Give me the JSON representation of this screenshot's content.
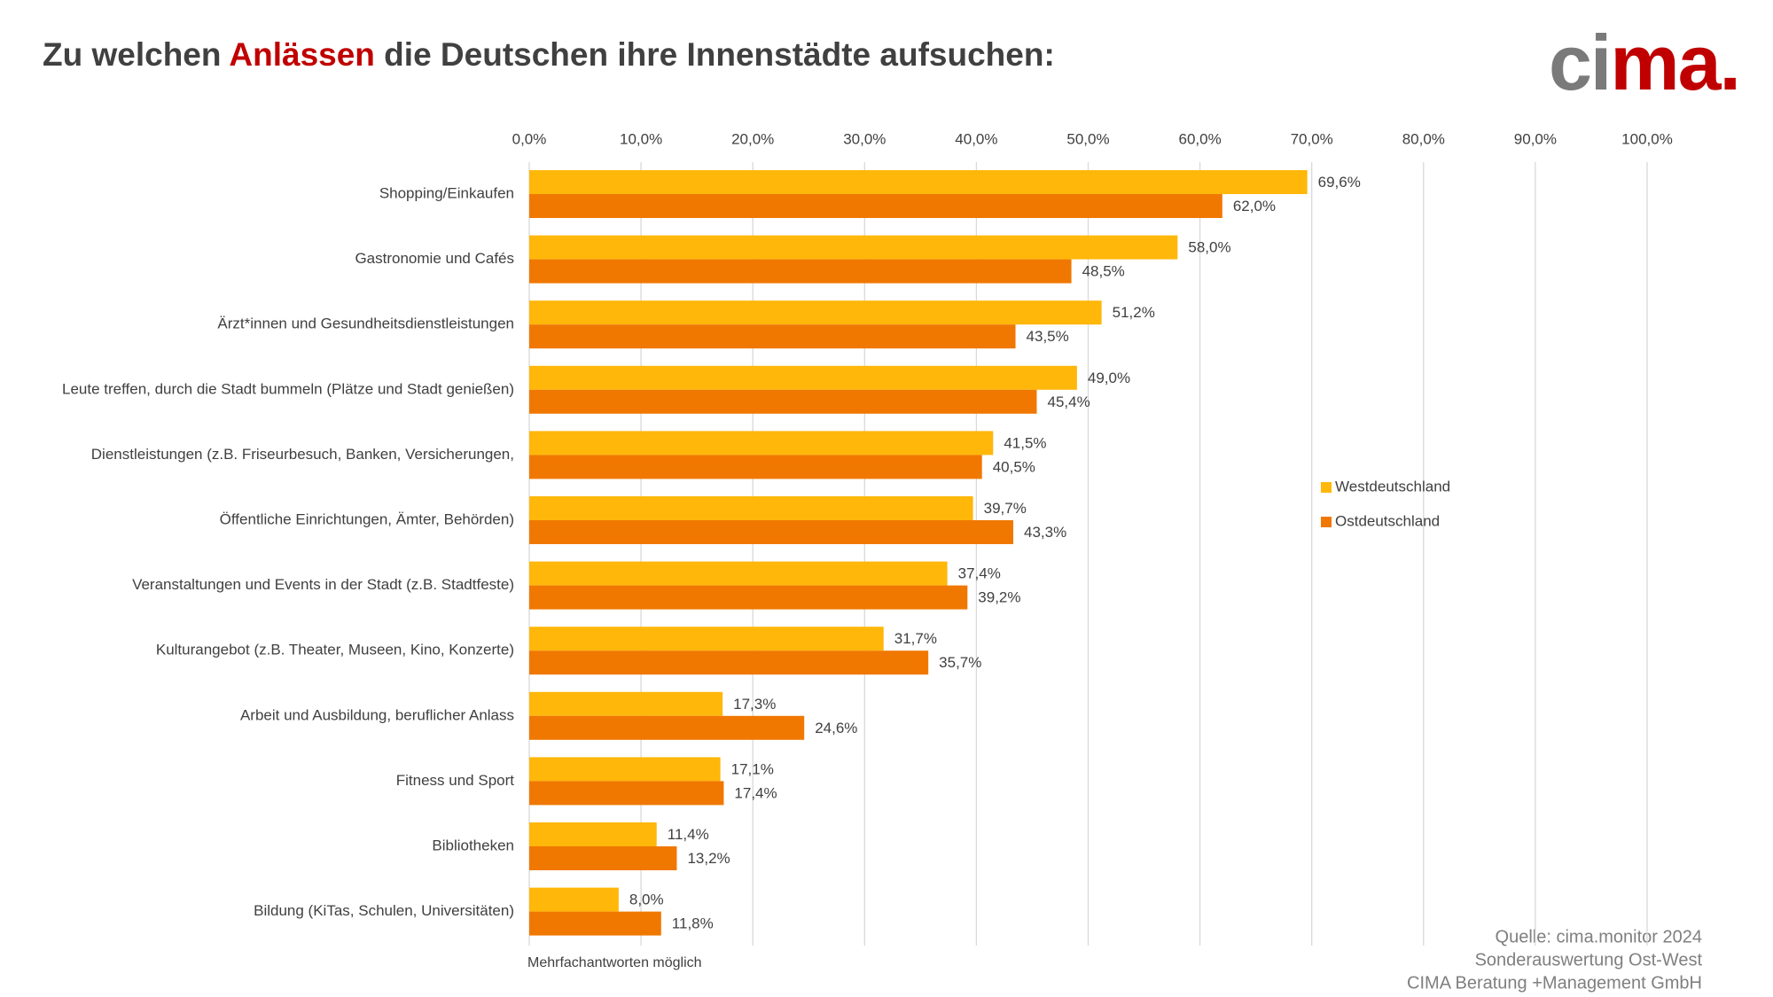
{
  "chart_data": {
    "type": "barh",
    "title_parts": [
      "Zu welchen ",
      "Anlässen",
      " die Deutschen ihre Innenstädte aufsuchen:"
    ],
    "logo_parts": [
      "ci",
      "ma."
    ],
    "categories": [
      "Shopping/Einkaufen",
      "Gastronomie und Cafés",
      "Ärzt*innen und Gesundheitsdienstleistungen",
      "Leute treffen, durch die Stadt bummeln (Plätze und Stadt genießen)",
      "Dienstleistungen (z.B. Friseurbesuch, Banken, Versicherungen,",
      "Öffentliche Einrichtungen, Ämter, Behörden)",
      "Veranstaltungen und Events in der Stadt (z.B. Stadtfeste)",
      "Kulturangebot (z.B. Theater, Museen, Kino, Konzerte)",
      "Arbeit und Ausbildung, beruflicher Anlass",
      "Fitness und Sport",
      "Bibliotheken",
      "Bildung (KiTas, Schulen, Universitäten)"
    ],
    "series": [
      {
        "name": "Westdeutschland",
        "color": "#ffb70a",
        "values": [
          69.6,
          58.0,
          51.2,
          49.0,
          41.5,
          39.7,
          37.4,
          31.7,
          17.3,
          17.1,
          11.4,
          8.0
        ],
        "value_labels": [
          "69,6%",
          "58,0%",
          "51,2%",
          "49,0%",
          "41,5%",
          "39,7%",
          "37,4%",
          "31,7%",
          "17,3%",
          "17,1%",
          "11,4%",
          "8,0%"
        ]
      },
      {
        "name": "Ostdeutschland",
        "color": "#f07800",
        "values": [
          62.0,
          48.5,
          43.5,
          45.4,
          40.5,
          43.3,
          39.2,
          35.7,
          24.6,
          17.4,
          13.2,
          11.8
        ],
        "value_labels": [
          "62,0%",
          "48,5%",
          "43,5%",
          "45,4%",
          "40,5%",
          "43,3%",
          "39,2%",
          "35,7%",
          "24,6%",
          "17,4%",
          "13,2%",
          "11,8%"
        ]
      }
    ],
    "xlim": [
      0,
      100
    ],
    "xticks": [
      {
        "value": 0,
        "label": "0,0%"
      },
      {
        "value": 10,
        "label": "10,0%"
      },
      {
        "value": 20,
        "label": "20,0%"
      },
      {
        "value": 30,
        "label": "30,0%"
      },
      {
        "value": 40,
        "label": "40,0%"
      },
      {
        "value": 50,
        "label": "50,0%"
      },
      {
        "value": 60,
        "label": "60,0%"
      },
      {
        "value": 70,
        "label": "70,0%"
      },
      {
        "value": 80,
        "label": "80,0%"
      },
      {
        "value": 90,
        "label": "90,0%"
      },
      {
        "value": 100,
        "label": "100,0%"
      }
    ],
    "grid": true,
    "legend_position": "right",
    "note": "Mehrfachantworten möglich",
    "source": [
      "Quelle: cima.monitor 2024",
      "Sonderauswertung Ost-West",
      "CIMA Beratung +Management GmbH"
    ]
  }
}
